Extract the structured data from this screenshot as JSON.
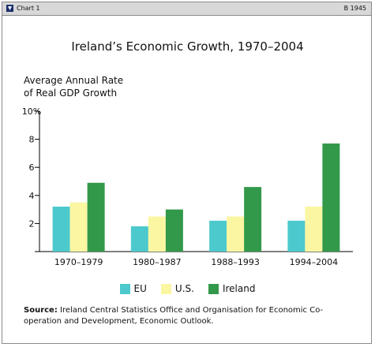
{
  "header": {
    "label": "Chart 1",
    "code": "B 1945"
  },
  "chart_data": {
    "type": "bar",
    "title": "Ireland’s Economic Growth, 1970–2004",
    "ylabel_line1": "Average Annual Rate",
    "ylabel_line2": "of Real GDP Growth",
    "categories": [
      "1970–1979",
      "1980–1987",
      "1988–1993",
      "1994–2004"
    ],
    "series": [
      {
        "name": "EU",
        "values": [
          3.2,
          1.8,
          2.2,
          2.2
        ],
        "color": "#4cc9cc"
      },
      {
        "name": "U.S.",
        "values": [
          3.5,
          2.5,
          2.5,
          3.2
        ],
        "color": "#fbf6a2"
      },
      {
        "name": "Ireland",
        "values": [
          4.9,
          3.0,
          4.6,
          7.7
        ],
        "color": "#33994a"
      }
    ],
    "ylim": [
      0,
      10
    ],
    "yticks": [
      "",
      "2",
      "4",
      "6",
      "8",
      "10%"
    ],
    "grid": false,
    "legend_position": "bottom"
  },
  "source": {
    "label": "Source:",
    "text": "Ireland Central Statistics Office and Organisation for Economic Co-operation and Development, Economic Outlook."
  }
}
